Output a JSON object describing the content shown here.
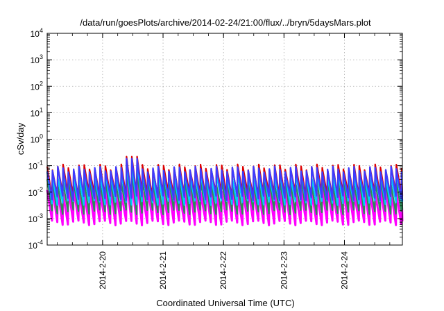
{
  "chart_data": {
    "type": "line",
    "title": "/data/run/goesPlots/archive/2014-02-24/21:00/flux/../bryn/5daysMars.plot",
    "xlabel": "Coordinated Universal Time (UTC)",
    "ylabel": "cSv/day",
    "yscale": "log",
    "ylim": [
      0.0001,
      10000
    ],
    "y_ticks": [
      {
        "base": "10",
        "exp": "-4",
        "value": 0.0001
      },
      {
        "base": "10",
        "exp": "-3",
        "value": 0.001
      },
      {
        "base": "10",
        "exp": "-2",
        "value": 0.01
      },
      {
        "base": "10",
        "exp": "-1",
        "value": 0.1
      },
      {
        "base": "10",
        "exp": "0",
        "value": 1
      },
      {
        "base": "10",
        "exp": "1",
        "value": 10
      },
      {
        "base": "10",
        "exp": "2",
        "value": 100
      },
      {
        "base": "10",
        "exp": "3",
        "value": 1000
      },
      {
        "base": "10",
        "exp": "4",
        "value": 10000
      }
    ],
    "xlim": [
      "2014-02-19 02:00",
      "2014-02-24 23:00"
    ],
    "x_ticks": [
      {
        "label": "2014-2-20",
        "value": "2014-02-20"
      },
      {
        "label": "2014-2-21",
        "value": "2014-02-21"
      },
      {
        "label": "2014-2-22",
        "value": "2014-02-22"
      },
      {
        "label": "2014-2-23",
        "value": "2014-02-23"
      },
      {
        "label": "2014-2-24",
        "value": "2014-02-24"
      }
    ],
    "grid": true,
    "sawtooth_period_hours": 2.1,
    "series": [
      {
        "color": "#ff00ff",
        "peak": 0.012,
        "trough": 0.0007
      },
      {
        "color": "#2e8b57",
        "peak": 0.025,
        "trough": 0.0018
      },
      {
        "color": "#00c8ff",
        "peak": 0.045,
        "trough": 0.004
      },
      {
        "color": "#dd0000",
        "peak": 0.09,
        "trough": 0.008
      },
      {
        "color": "#3c3cff",
        "peak": 0.075,
        "trough": 0.006
      }
    ],
    "spike": {
      "time": "2014-02-20 12:00",
      "value": 0.22
    }
  }
}
